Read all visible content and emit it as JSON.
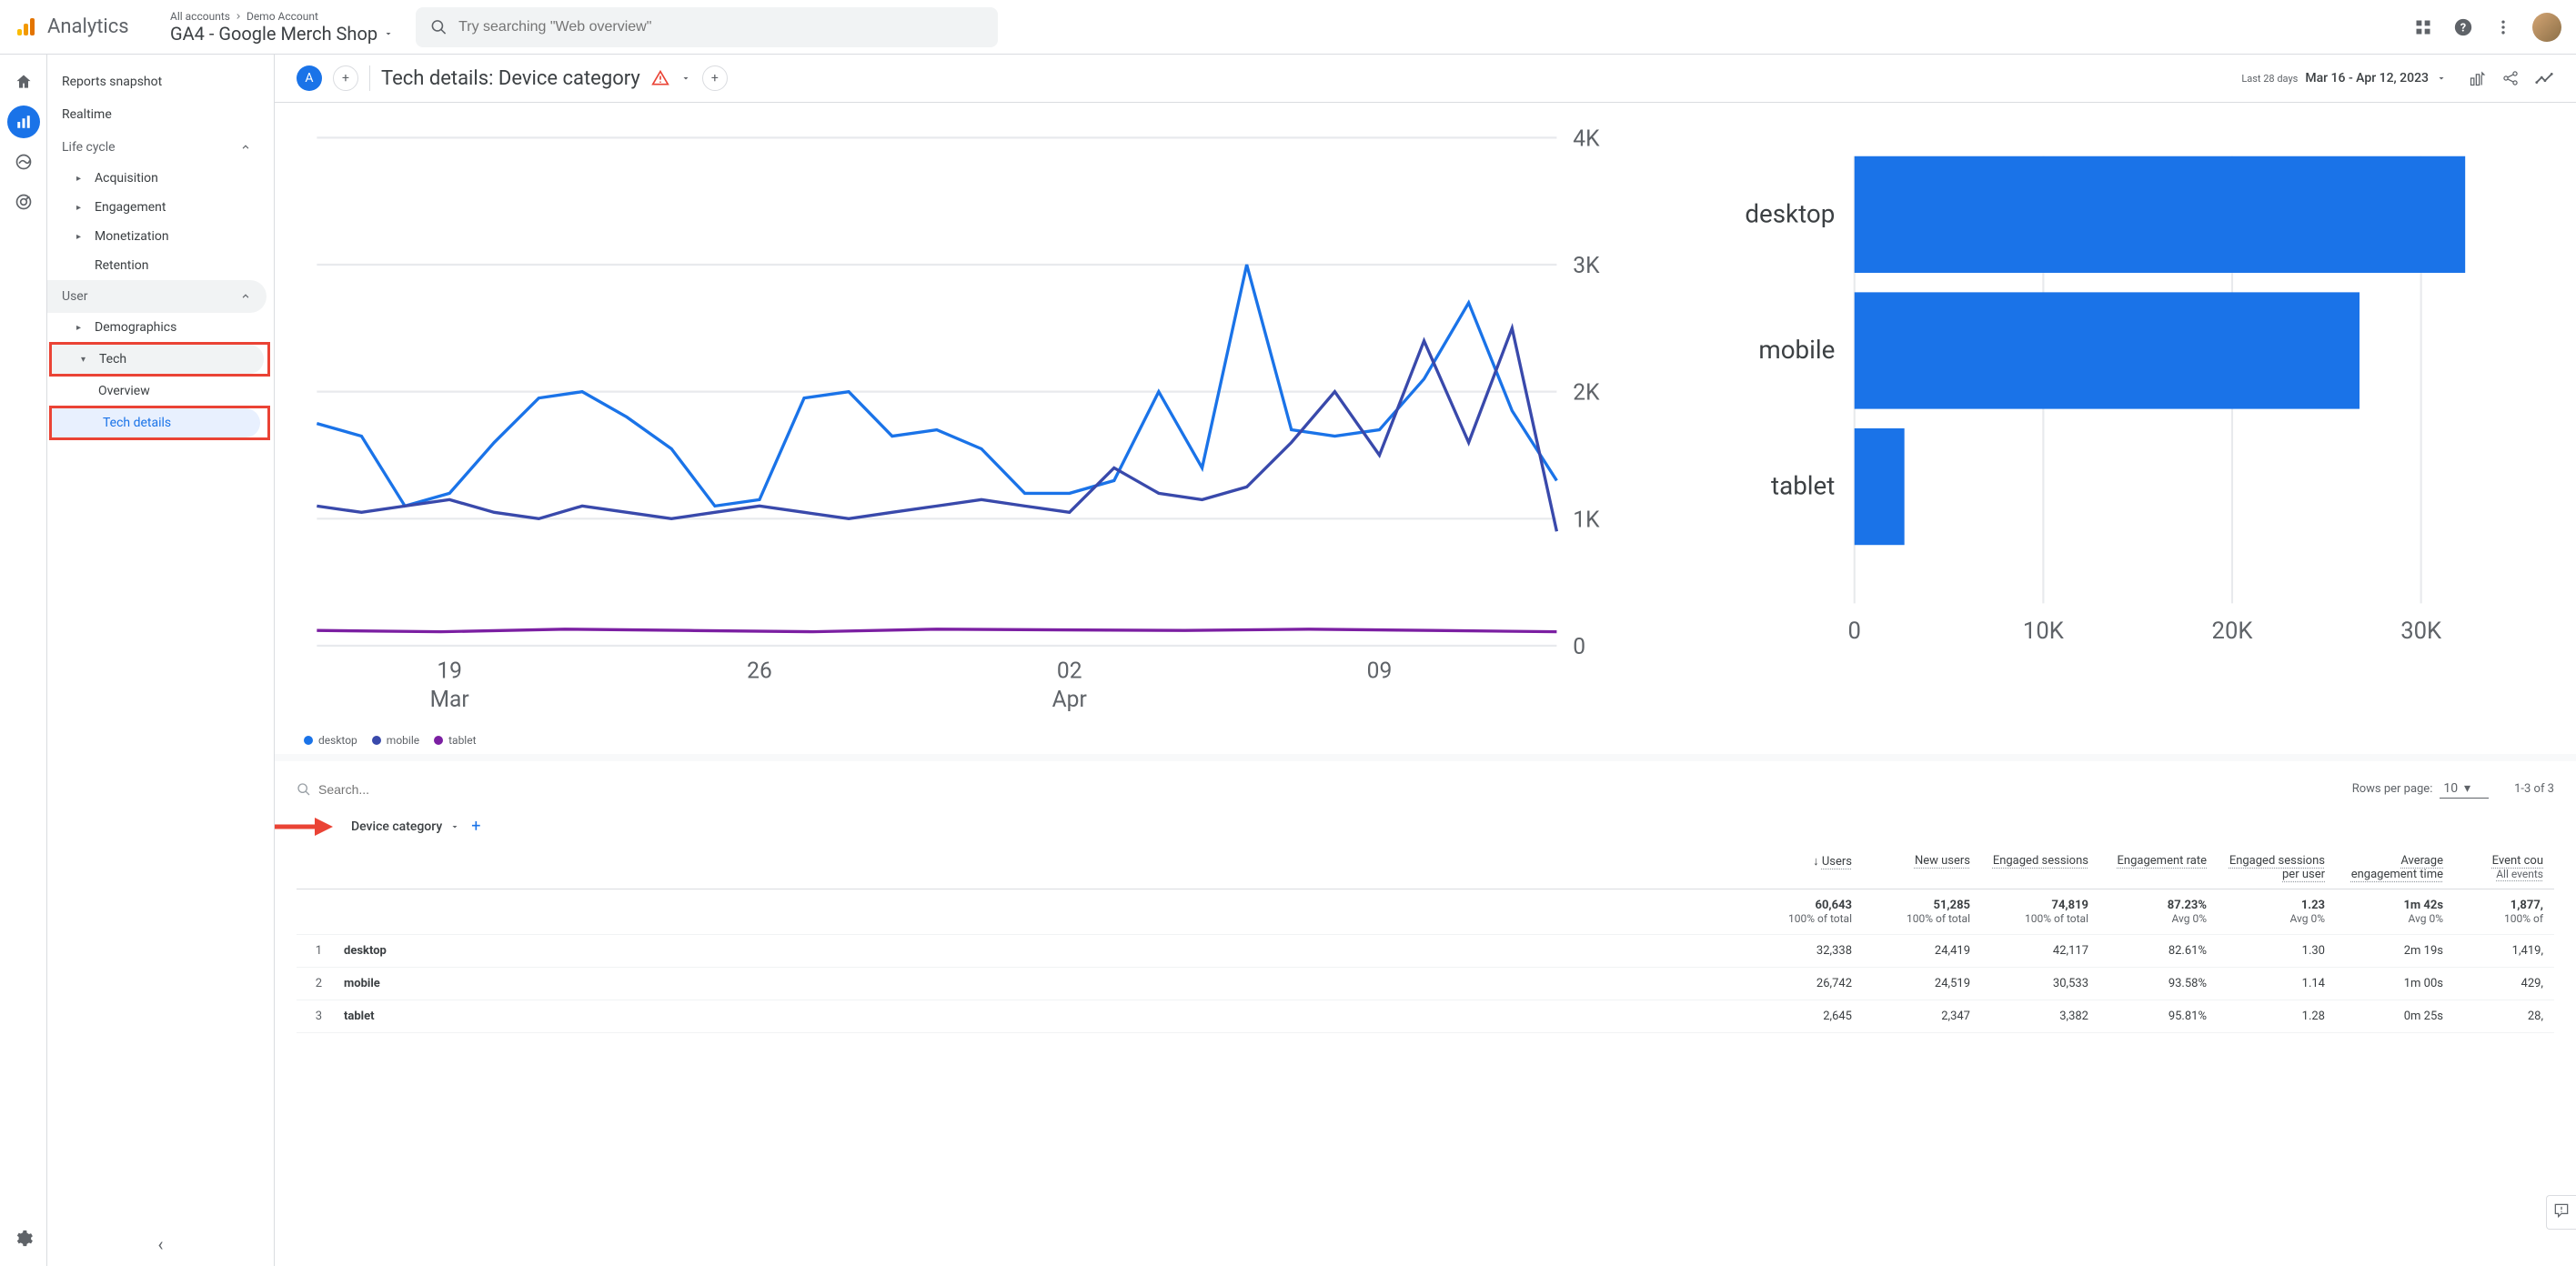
{
  "header": {
    "product": "Analytics",
    "breadcrumb_all": "All accounts",
    "breadcrumb_account": "Demo Account",
    "property": "GA4 - Google Merch Shop",
    "search_placeholder": "Try searching \"Web overview\""
  },
  "sidebar": {
    "snapshot": "Reports snapshot",
    "realtime": "Realtime",
    "lifecycle": "Life cycle",
    "acquisition": "Acquisition",
    "engagement": "Engagement",
    "monetization": "Monetization",
    "retention": "Retention",
    "user": "User",
    "demographics": "Demographics",
    "tech": "Tech",
    "overview": "Overview",
    "tech_details": "Tech details"
  },
  "report": {
    "chip": "A",
    "title": "Tech details: Device category",
    "date_label": "Last 28 days",
    "date_range": "Mar 16 - Apr 12, 2023"
  },
  "line_chart": {
    "type": "line",
    "ylim": [
      0,
      4000
    ],
    "yticks": [
      0,
      1000,
      2000,
      3000,
      4000
    ],
    "ytick_labels": [
      "0",
      "1K",
      "2K",
      "3K",
      "4K"
    ],
    "xticks": [
      0.107,
      0.357,
      0.607,
      0.857
    ],
    "xtick_labels_top": [
      "19",
      "26",
      "02",
      "09"
    ],
    "xtick_labels_bot": [
      "Mar",
      "",
      "Apr",
      ""
    ],
    "grid_color": "#e8eaed",
    "axis_color": "#5f6368",
    "background": "#ffffff",
    "fontsize": 11,
    "series": [
      {
        "name": "desktop",
        "color": "#1a73e8",
        "width": 1.5,
        "points": [
          [
            0,
            1750
          ],
          [
            0.036,
            1650
          ],
          [
            0.071,
            1100
          ],
          [
            0.107,
            1200
          ],
          [
            0.143,
            1600
          ],
          [
            0.179,
            1950
          ],
          [
            0.214,
            2000
          ],
          [
            0.25,
            1800
          ],
          [
            0.286,
            1550
          ],
          [
            0.321,
            1100
          ],
          [
            0.357,
            1150
          ],
          [
            0.393,
            1950
          ],
          [
            0.429,
            2000
          ],
          [
            0.464,
            1650
          ],
          [
            0.5,
            1700
          ],
          [
            0.536,
            1550
          ],
          [
            0.571,
            1200
          ],
          [
            0.607,
            1200
          ],
          [
            0.643,
            1300
          ],
          [
            0.679,
            2000
          ],
          [
            0.714,
            1400
          ],
          [
            0.75,
            3000
          ],
          [
            0.786,
            1700
          ],
          [
            0.821,
            1650
          ],
          [
            0.857,
            1700
          ],
          [
            0.893,
            2100
          ],
          [
            0.929,
            2700
          ],
          [
            0.964,
            1850
          ],
          [
            1,
            1300
          ]
        ]
      },
      {
        "name": "mobile",
        "color": "#3949ab",
        "width": 1.5,
        "points": [
          [
            0,
            1100
          ],
          [
            0.036,
            1050
          ],
          [
            0.071,
            1100
          ],
          [
            0.107,
            1150
          ],
          [
            0.143,
            1050
          ],
          [
            0.179,
            1000
          ],
          [
            0.214,
            1100
          ],
          [
            0.25,
            1050
          ],
          [
            0.286,
            1000
          ],
          [
            0.321,
            1050
          ],
          [
            0.357,
            1100
          ],
          [
            0.393,
            1050
          ],
          [
            0.429,
            1000
          ],
          [
            0.464,
            1050
          ],
          [
            0.5,
            1100
          ],
          [
            0.536,
            1150
          ],
          [
            0.571,
            1100
          ],
          [
            0.607,
            1050
          ],
          [
            0.643,
            1400
          ],
          [
            0.679,
            1200
          ],
          [
            0.714,
            1150
          ],
          [
            0.75,
            1250
          ],
          [
            0.786,
            1600
          ],
          [
            0.821,
            2000
          ],
          [
            0.857,
            1500
          ],
          [
            0.893,
            2400
          ],
          [
            0.929,
            1600
          ],
          [
            0.964,
            2500
          ],
          [
            1,
            900
          ]
        ]
      },
      {
        "name": "tablet",
        "color": "#7b1fa2",
        "width": 1.5,
        "points": [
          [
            0,
            120
          ],
          [
            0.1,
            110
          ],
          [
            0.2,
            130
          ],
          [
            0.3,
            120
          ],
          [
            0.4,
            110
          ],
          [
            0.5,
            130
          ],
          [
            0.6,
            125
          ],
          [
            0.7,
            120
          ],
          [
            0.8,
            130
          ],
          [
            0.9,
            120
          ],
          [
            1,
            110
          ]
        ]
      }
    ]
  },
  "bar_chart": {
    "type": "bar-horizontal",
    "xlim": [
      0,
      35000
    ],
    "xticks": [
      0,
      10000,
      20000,
      30000
    ],
    "xtick_labels": [
      "0",
      "10K",
      "20K",
      "30K"
    ],
    "grid_color": "#e8eaed",
    "axis_color": "#5f6368",
    "bar_color": "#1a73e8",
    "background": "#ffffff",
    "fontsize": 12,
    "bars": [
      {
        "label": "desktop",
        "value": 32338
      },
      {
        "label": "mobile",
        "value": 26742
      },
      {
        "label": "tablet",
        "value": 2645
      }
    ]
  },
  "legend": {
    "desktop": "desktop",
    "mobile": "mobile",
    "tablet": "tablet"
  },
  "table": {
    "search_placeholder": "Search...",
    "rows_per_page_label": "Rows per page:",
    "rows_per_page_value": "10",
    "page_info": "1-3 of 3",
    "dimension": "Device category",
    "columns": [
      {
        "h1": "Users",
        "h2": "",
        "sort_desc": true,
        "width": 130
      },
      {
        "h1": "New users",
        "h2": "",
        "width": 130
      },
      {
        "h1": "Engaged sessions",
        "h2": "",
        "width": 130
      },
      {
        "h1": "Engagement rate",
        "h2": "",
        "width": 130
      },
      {
        "h1": "Engaged sessions per user",
        "h2": "",
        "width": 130
      },
      {
        "h1": "Average engagement time",
        "h2": "",
        "width": 130
      },
      {
        "h1": "Event cou",
        "h2": "All events",
        "width": 110
      }
    ],
    "totals": {
      "values": [
        "60,643",
        "51,285",
        "74,819",
        "87.23%",
        "1.23",
        "1m 42s",
        "1,877,"
      ],
      "subs": [
        "100% of total",
        "100% of total",
        "100% of total",
        "Avg 0%",
        "Avg 0%",
        "Avg 0%",
        "100% of"
      ]
    },
    "rows": [
      {
        "idx": "1",
        "dim": "desktop",
        "cells": [
          "32,338",
          "24,419",
          "42,117",
          "82.61%",
          "1.30",
          "2m 19s",
          "1,419,"
        ]
      },
      {
        "idx": "2",
        "dim": "mobile",
        "cells": [
          "26,742",
          "24,519",
          "30,533",
          "93.58%",
          "1.14",
          "1m 00s",
          "429,"
        ]
      },
      {
        "idx": "3",
        "dim": "tablet",
        "cells": [
          "2,645",
          "2,347",
          "3,382",
          "95.81%",
          "1.28",
          "0m 25s",
          "28,"
        ]
      }
    ]
  }
}
